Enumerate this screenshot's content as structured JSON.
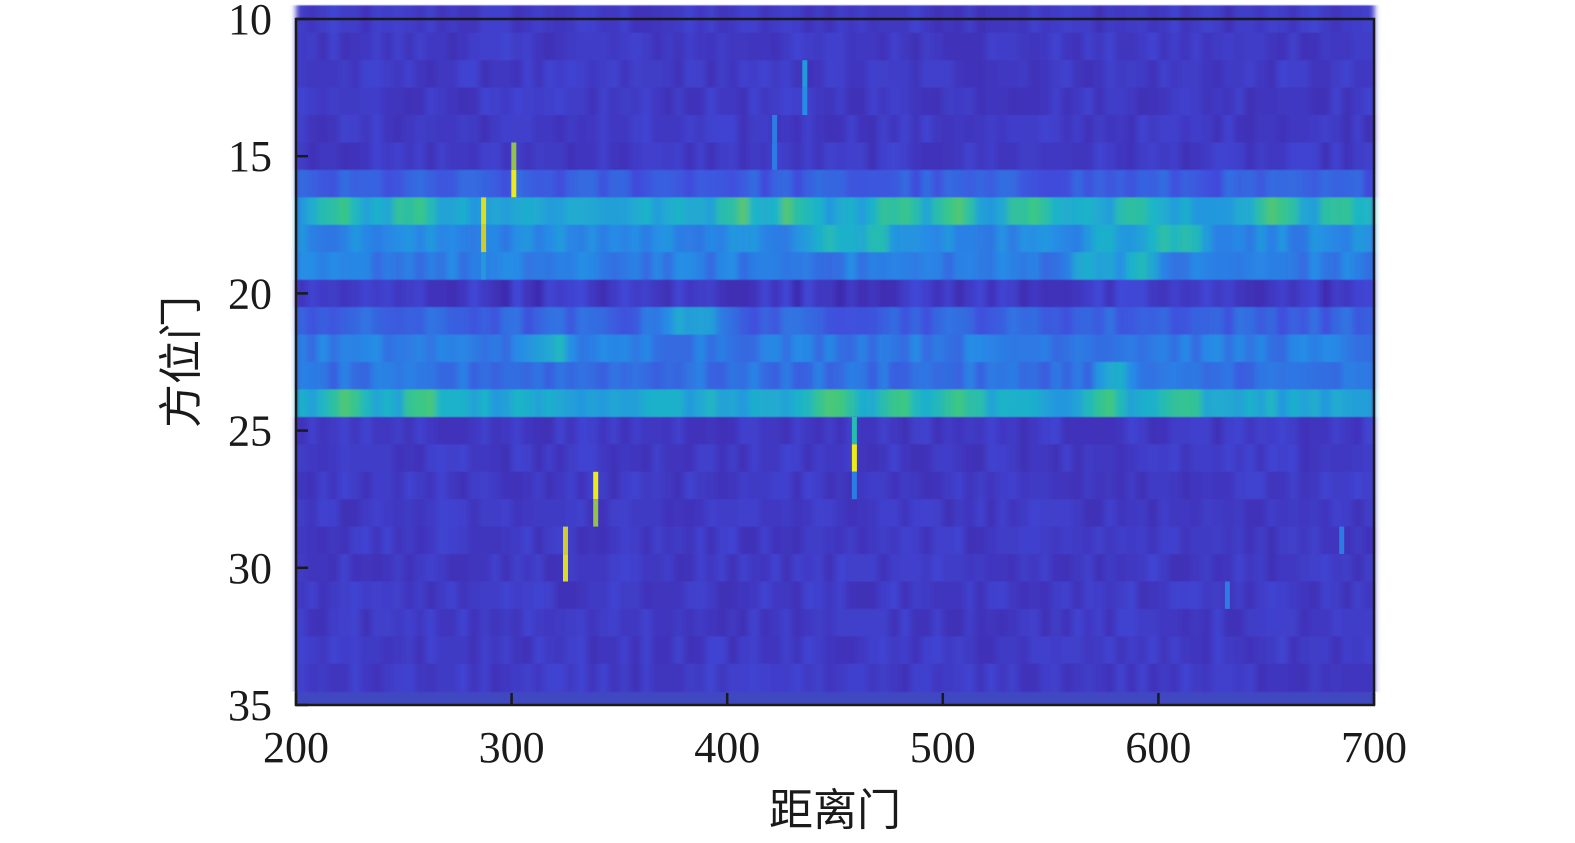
{
  "chart_data": {
    "type": "heatmap",
    "title": "",
    "xlabel": "距离门",
    "ylabel": "方位门",
    "xlim": [
      200,
      700
    ],
    "ylim": [
      35,
      10
    ],
    "y_reversed": true,
    "x_ticks": [
      200,
      300,
      400,
      500,
      600,
      700
    ],
    "x_tick_labels": [
      "200",
      "300",
      "400",
      "500",
      "600",
      "700"
    ],
    "y_ticks": [
      10,
      15,
      20,
      25,
      30,
      35
    ],
    "y_tick_labels": [
      "10",
      "15",
      "20",
      "25",
      "30",
      "35"
    ],
    "grid": false,
    "colormap": "parula",
    "rows": {
      "first": 10,
      "last": 34,
      "unit": 1
    },
    "background_level": 0.08,
    "bands": [
      {
        "row": 16,
        "level": 0.2
      },
      {
        "row": 17,
        "level": 0.45,
        "hot": [
          220,
          255,
          405,
          430,
          480,
          505,
          540,
          590,
          655,
          685
        ]
      },
      {
        "row": 18,
        "level": 0.34,
        "hot": [
          450,
          470,
          575,
          600,
          615
        ]
      },
      {
        "row": 19,
        "level": 0.3,
        "hot": [
          570,
          590
        ]
      },
      {
        "row": 20,
        "level": 0.08
      },
      {
        "row": 21,
        "level": 0.22,
        "hot": [
          375,
          388
        ]
      },
      {
        "row": 22,
        "level": 0.3,
        "hot": [
          320
        ]
      },
      {
        "row": 23,
        "level": 0.26,
        "hot": [
          580
        ]
      },
      {
        "row": 24,
        "level": 0.45,
        "hot": [
          225,
          260,
          450,
          480,
          508,
          575,
          610
        ]
      }
    ],
    "spikes": [
      {
        "x": 301,
        "row": 15,
        "value": 0.75
      },
      {
        "x": 301,
        "row": 16,
        "value": 0.95
      },
      {
        "x": 287,
        "row": 17,
        "value": 0.9
      },
      {
        "x": 287,
        "row": 18,
        "value": 0.85
      },
      {
        "x": 287,
        "row": 19,
        "value": 0.4
      },
      {
        "x": 436,
        "row": 12,
        "value": 0.4
      },
      {
        "x": 436,
        "row": 13,
        "value": 0.35
      },
      {
        "x": 422,
        "row": 14,
        "value": 0.3
      },
      {
        "x": 422,
        "row": 15,
        "value": 0.3
      },
      {
        "x": 459,
        "row": 25,
        "value": 0.55
      },
      {
        "x": 459,
        "row": 26,
        "value": 0.95
      },
      {
        "x": 459,
        "row": 27,
        "value": 0.3
      },
      {
        "x": 473,
        "row": 22,
        "value": 0.3
      },
      {
        "x": 473,
        "row": 23,
        "value": 0.3
      },
      {
        "x": 339,
        "row": 27,
        "value": 0.95
      },
      {
        "x": 339,
        "row": 28,
        "value": 0.75
      },
      {
        "x": 325,
        "row": 29,
        "value": 0.85
      },
      {
        "x": 325,
        "row": 30,
        "value": 0.9
      },
      {
        "x": 632,
        "row": 31,
        "value": 0.3
      },
      {
        "x": 685,
        "row": 29,
        "value": 0.3
      }
    ]
  }
}
